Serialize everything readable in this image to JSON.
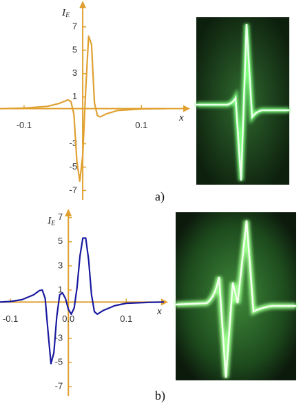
{
  "chart_data": [
    {
      "type": "line",
      "ylabel": "I",
      "ylabel_subscript": "E",
      "xlabel": "x",
      "caption": "a)",
      "axis_color": "#e0a030",
      "xlim": [
        -0.141,
        0.176
      ],
      "ylim": [
        -7.8,
        9
      ],
      "xticks": [
        -0.1,
        0.1
      ],
      "yticks": [
        -7,
        -5,
        -3,
        1,
        3,
        5,
        7
      ],
      "x": [
        -0.14,
        -0.1,
        -0.06,
        -0.04,
        -0.03,
        -0.025,
        -0.02,
        -0.015,
        -0.01,
        -0.005,
        0,
        0.005,
        0.01,
        0.015,
        0.02,
        0.025,
        0.03,
        0.04,
        0.06,
        0.1,
        0.14
      ],
      "series": [
        {
          "color": "#e0a030",
          "values": [
            0,
            0.05,
            0.2,
            0.45,
            0.65,
            0.75,
            0.6,
            -0.5,
            -4.5,
            -6.2,
            -4,
            1.5,
            6.2,
            5.5,
            0.5,
            -0.6,
            -0.7,
            -0.45,
            -0.15,
            -0.03,
            0
          ]
        }
      ]
    },
    {
      "type": "line",
      "ylabel": "I",
      "ylabel_subscript": "E",
      "xlabel": "x",
      "caption": "b)",
      "axis_color": "#e0a030",
      "xlim": [
        -0.118,
        0.165
      ],
      "ylim": [
        -7.8,
        7.5
      ],
      "xticks": [
        -0.1,
        {
          "value": 0,
          "label": "0.0"
        },
        0.1
      ],
      "yticks": [
        -7,
        -5,
        -3,
        1,
        3,
        5,
        7
      ],
      "x": [
        -0.118,
        -0.1,
        -0.08,
        -0.06,
        -0.05,
        -0.045,
        -0.04,
        -0.035,
        -0.03,
        -0.025,
        -0.02,
        -0.015,
        -0.01,
        -0.005,
        0,
        0.005,
        0.01,
        0.015,
        0.02,
        0.025,
        0.03,
        0.035,
        0.04,
        0.045,
        0.05,
        0.06,
        0.08,
        0.1,
        0.14,
        0.165
      ],
      "series": [
        {
          "color": "#1a1aa0",
          "values": [
            0,
            0.05,
            0.2,
            0.6,
            0.95,
            1.0,
            0.3,
            -2.5,
            -5.1,
            -4.2,
            -1.2,
            0.6,
            0.75,
            0.3,
            -0.6,
            -1.0,
            -0.5,
            1.2,
            3.8,
            5.3,
            5.3,
            3.5,
            0.6,
            -0.8,
            -1.0,
            -0.7,
            -0.3,
            -0.1,
            -0.02,
            0
          ]
        }
      ]
    }
  ]
}
